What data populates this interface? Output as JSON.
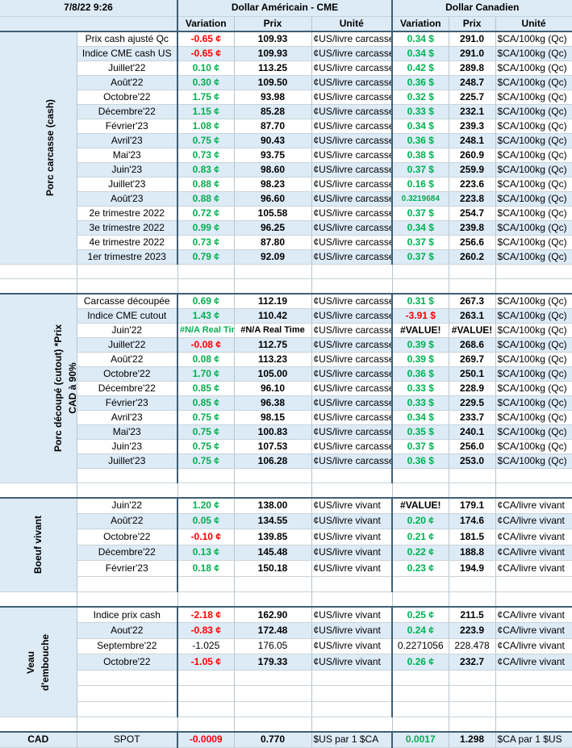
{
  "header": {
    "timestamp": "7/8/22 9:26",
    "usd_group": "Dollar Américain - CME",
    "cad_group": "Dollar Canadien",
    "col_variation": "Variation",
    "col_prix": "Prix",
    "col_unite": "Unité"
  },
  "sections": {
    "porc_cash": {
      "title": "Porc carcasse (cash)",
      "rows": [
        {
          "label": "Prix cash ajusté Qc",
          "usd_var": "-0.65 ¢",
          "usd_prix": "109.93",
          "usd_unit": "¢US/livre carcasse",
          "cad_var": "0.34 $",
          "cad_prix": "291.0",
          "cad_unit": "$CA/100kg (Qc)"
        },
        {
          "label": "Indice CME cash US",
          "usd_var": "-0.65 ¢",
          "usd_prix": "109.93",
          "usd_unit": "¢US/livre carcasse",
          "cad_var": "0.34 $",
          "cad_prix": "291.0",
          "cad_unit": "$CA/100kg (Qc)"
        },
        {
          "label": "Juillet'22",
          "usd_var": "0.10 ¢",
          "usd_prix": "113.25",
          "usd_unit": "¢US/livre carcasse",
          "cad_var": "0.42 $",
          "cad_prix": "289.8",
          "cad_unit": "$CA/100kg (Qc)"
        },
        {
          "label": "Août'22",
          "usd_var": "0.30 ¢",
          "usd_prix": "109.50",
          "usd_unit": "¢US/livre carcasse",
          "cad_var": "0.36 $",
          "cad_prix": "248.7",
          "cad_unit": "$CA/100kg (Qc)"
        },
        {
          "label": "Octobre'22",
          "usd_var": "1.75 ¢",
          "usd_prix": "93.98",
          "usd_unit": "¢US/livre carcasse",
          "cad_var": "0.32 $",
          "cad_prix": "225.7",
          "cad_unit": "$CA/100kg (Qc)"
        },
        {
          "label": "Décembre'22",
          "usd_var": "1.15 ¢",
          "usd_prix": "85.28",
          "usd_unit": "¢US/livre carcasse",
          "cad_var": "0.33 $",
          "cad_prix": "232.1",
          "cad_unit": "$CA/100kg (Qc)"
        },
        {
          "label": "Février'23",
          "usd_var": "1.08 ¢",
          "usd_prix": "87.70",
          "usd_unit": "¢US/livre carcasse",
          "cad_var": "0.34 $",
          "cad_prix": "239.3",
          "cad_unit": "$CA/100kg (Qc)"
        },
        {
          "label": "Avril'23",
          "usd_var": "0.75 ¢",
          "usd_prix": "90.43",
          "usd_unit": "¢US/livre carcasse",
          "cad_var": "0.36 $",
          "cad_prix": "248.1",
          "cad_unit": "$CA/100kg (Qc)"
        },
        {
          "label": "Mai'23",
          "usd_var": "0.73 ¢",
          "usd_prix": "93.75",
          "usd_unit": "¢US/livre carcasse",
          "cad_var": "0.38 $",
          "cad_prix": "260.9",
          "cad_unit": "$CA/100kg (Qc)"
        },
        {
          "label": "Juin'23",
          "usd_var": "0.83 ¢",
          "usd_prix": "98.60",
          "usd_unit": "¢US/livre carcasse",
          "cad_var": "0.37 $",
          "cad_prix": "259.9",
          "cad_unit": "$CA/100kg (Qc)"
        },
        {
          "label": "Juillet'23",
          "usd_var": "0.88 ¢",
          "usd_prix": "98.23",
          "usd_unit": "¢US/livre carcasse",
          "cad_var": "0.16 $",
          "cad_prix": "223.6",
          "cad_unit": "$CA/100kg (Qc)"
        },
        {
          "label": "Août'23",
          "usd_var": "0.88 ¢",
          "usd_prix": "96.60",
          "usd_unit": "¢US/livre carcasse",
          "cad_var": "0.3219684",
          "cad_prix": "223.8",
          "cad_unit": "$CA/100kg (Qc)"
        },
        {
          "label": "2e trimestre 2022",
          "usd_var": "0.72 ¢",
          "usd_prix": "105.58",
          "usd_unit": "¢US/livre carcasse",
          "cad_var": "0.37 $",
          "cad_prix": "254.7",
          "cad_unit": "$CA/100kg (Qc)"
        },
        {
          "label": "3e trimestre 2022",
          "usd_var": "0.99 ¢",
          "usd_prix": "96.25",
          "usd_unit": "¢US/livre carcasse",
          "cad_var": "0.34 $",
          "cad_prix": "239.8",
          "cad_unit": "$CA/100kg (Qc)"
        },
        {
          "label": "4e trimestre 2022",
          "usd_var": "0.73 ¢",
          "usd_prix": "87.80",
          "usd_unit": "¢US/livre carcasse",
          "cad_var": "0.37 $",
          "cad_prix": "256.6",
          "cad_unit": "$CA/100kg (Qc)"
        },
        {
          "label": "1er trimestre 2023",
          "usd_var": "0.79 ¢",
          "usd_prix": "92.09",
          "usd_unit": "¢US/livre carcasse",
          "cad_var": "0.37 $",
          "cad_prix": "260.2",
          "cad_unit": "$CA/100kg (Qc)"
        }
      ]
    },
    "porc_cutout": {
      "title_line1": "Porc découpé (cutout) *Prix",
      "title_line2": "CAD à 90%",
      "rows": [
        {
          "label": "Carcasse découpée",
          "usd_var": "0.69 ¢",
          "usd_prix": "112.19",
          "usd_unit": "¢US/livre carcasse",
          "cad_var": "0.31 $",
          "cad_prix": "267.3",
          "cad_unit": "$CA/100kg (Qc)"
        },
        {
          "label": "Indice CME cutout",
          "usd_var": "1.43 ¢",
          "usd_prix": "110.42",
          "usd_unit": "¢US/livre carcasse",
          "cad_var": "-3.91 $",
          "cad_prix": "263.1",
          "cad_unit": "$CA/100kg (Qc)"
        },
        {
          "label": "Juin'22",
          "usd_var": "#N/A Real Time",
          "usd_prix": "#N/A Real Time",
          "usd_unit": "¢US/livre carcasse",
          "cad_var": "#VALUE!",
          "cad_prix": "#VALUE!",
          "cad_unit": "$CA/100kg (Qc)"
        },
        {
          "label": "Juillet'22",
          "usd_var": "-0.08 ¢",
          "usd_prix": "112.75",
          "usd_unit": "¢US/livre carcasse",
          "cad_var": "0.39 $",
          "cad_prix": "268.6",
          "cad_unit": "$CA/100kg (Qc)"
        },
        {
          "label": "Août'22",
          "usd_var": "0.08 ¢",
          "usd_prix": "113.23",
          "usd_unit": "¢US/livre carcasse",
          "cad_var": "0.39 $",
          "cad_prix": "269.7",
          "cad_unit": "$CA/100kg (Qc)"
        },
        {
          "label": "Octobre'22",
          "usd_var": "1.70 ¢",
          "usd_prix": "105.00",
          "usd_unit": "¢US/livre carcasse",
          "cad_var": "0.36 $",
          "cad_prix": "250.1",
          "cad_unit": "$CA/100kg (Qc)"
        },
        {
          "label": "Décembre'22",
          "usd_var": "0.85 ¢",
          "usd_prix": "96.10",
          "usd_unit": "¢US/livre carcasse",
          "cad_var": "0.33 $",
          "cad_prix": "228.9",
          "cad_unit": "$CA/100kg (Qc)"
        },
        {
          "label": "Février'23",
          "usd_var": "0.85 ¢",
          "usd_prix": "96.38",
          "usd_unit": "¢US/livre carcasse",
          "cad_var": "0.33 $",
          "cad_prix": "229.5",
          "cad_unit": "$CA/100kg (Qc)"
        },
        {
          "label": "Avril'23",
          "usd_var": "0.75 ¢",
          "usd_prix": "98.15",
          "usd_unit": "¢US/livre carcasse",
          "cad_var": "0.34 $",
          "cad_prix": "233.7",
          "cad_unit": "$CA/100kg (Qc)"
        },
        {
          "label": "Mai'23",
          "usd_var": "0.75 ¢",
          "usd_prix": "100.83",
          "usd_unit": "¢US/livre carcasse",
          "cad_var": "0.35 $",
          "cad_prix": "240.1",
          "cad_unit": "$CA/100kg (Qc)"
        },
        {
          "label": "Juin'23",
          "usd_var": "0.75 ¢",
          "usd_prix": "107.53",
          "usd_unit": "¢US/livre carcasse",
          "cad_var": "0.37 $",
          "cad_prix": "256.0",
          "cad_unit": "$CA/100kg (Qc)"
        },
        {
          "label": "Juillet'23",
          "usd_var": "0.75 ¢",
          "usd_prix": "106.28",
          "usd_unit": "¢US/livre carcasse",
          "cad_var": "0.36 $",
          "cad_prix": "253.0",
          "cad_unit": "$CA/100kg (Qc)"
        }
      ]
    },
    "boeuf": {
      "title": "Boeuf vivant",
      "rows": [
        {
          "label": "Juin'22",
          "usd_var": "1.20 ¢",
          "usd_prix": "138.00",
          "usd_unit": "¢US/livre vivant",
          "cad_var": "#VALUE!",
          "cad_prix": "179.1",
          "cad_unit": "¢CA/livre vivant"
        },
        {
          "label": "Août'22",
          "usd_var": "0.05 ¢",
          "usd_prix": "134.55",
          "usd_unit": "¢US/livre vivant",
          "cad_var": "0.20 ¢",
          "cad_prix": "174.6",
          "cad_unit": "¢CA/livre vivant"
        },
        {
          "label": "Octobre'22",
          "usd_var": "-0.10 ¢",
          "usd_prix": "139.85",
          "usd_unit": "¢US/livre vivant",
          "cad_var": "0.21 ¢",
          "cad_prix": "181.5",
          "cad_unit": "¢CA/livre vivant"
        },
        {
          "label": "Décembre'22",
          "usd_var": "0.13 ¢",
          "usd_prix": "145.48",
          "usd_unit": "¢US/livre vivant",
          "cad_var": "0.22 ¢",
          "cad_prix": "188.8",
          "cad_unit": "¢CA/livre vivant"
        },
        {
          "label": "Février'23",
          "usd_var": "0.18 ¢",
          "usd_prix": "150.18",
          "usd_unit": "¢US/livre vivant",
          "cad_var": "0.23 ¢",
          "cad_prix": "194.9",
          "cad_unit": "¢CA/livre vivant"
        }
      ]
    },
    "veau": {
      "title_line1": "Veau",
      "title_line2": "d'embouche",
      "rows": [
        {
          "label": "Indice prix cash",
          "usd_var": "-2.18 ¢",
          "usd_prix": "162.90",
          "usd_unit": "¢US/livre vivant",
          "cad_var": "0.25 ¢",
          "cad_prix": "211.5",
          "cad_unit": "¢CA/livre vivant"
        },
        {
          "label": "Aout'22",
          "usd_var": "-0.83 ¢",
          "usd_prix": "172.48",
          "usd_unit": "¢US/livre vivant",
          "cad_var": "0.24 ¢",
          "cad_prix": "223.9",
          "cad_unit": "¢CA/livre vivant"
        },
        {
          "label": "Septembre'22",
          "usd_var": "-1.025",
          "usd_prix": "176.05",
          "usd_unit": "¢US/livre vivant",
          "cad_var": "0.2271056",
          "cad_prix": "228.478",
          "cad_unit": "¢CA/livre vivant"
        },
        {
          "label": "Octobre'22",
          "usd_var": "-1.05 ¢",
          "usd_prix": "179.33",
          "usd_unit": "¢US/livre vivant",
          "cad_var": "0.26 ¢",
          "cad_prix": "232.7",
          "cad_unit": "¢CA/livre vivant"
        }
      ]
    },
    "cad": {
      "title": "CAD",
      "label": "SPOT",
      "usd_var": "-0.0009",
      "usd_prix": "0.770",
      "usd_unit": "$US par 1 $CA",
      "cad_var": "0.0017",
      "cad_prix": "1.298",
      "cad_unit": "$CA par 1 $US"
    }
  },
  "colors": {
    "positive": "#00b050",
    "negative": "#ff0000",
    "band": "#ddebf7",
    "border": "#3f5f75"
  }
}
